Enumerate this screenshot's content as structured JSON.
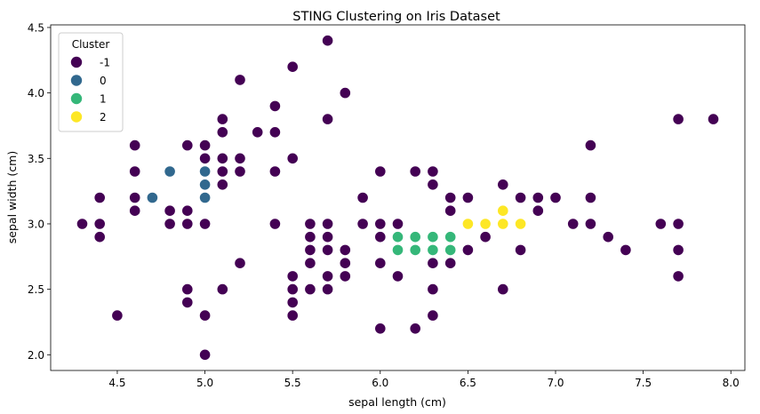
{
  "chart_data": {
    "type": "scatter",
    "title": "STING Clustering on Iris Dataset",
    "xlabel": "sepal length (cm)",
    "ylabel": "sepal width (cm)",
    "xlim": [
      4.12,
      8.08
    ],
    "ylim": [
      1.88,
      4.52
    ],
    "xticks": [
      4.5,
      5.0,
      5.5,
      6.0,
      6.5,
      7.0,
      7.5,
      8.0
    ],
    "yticks": [
      2.0,
      2.5,
      3.0,
      3.5,
      4.0,
      4.5
    ],
    "grid": false,
    "legend": {
      "title": "Cluster",
      "placement": "top-left",
      "entries": [
        "-1",
        "0",
        "1",
        "2"
      ]
    },
    "colors": {
      "-1": "#440154",
      "0": "#31688e",
      "1": "#35b779",
      "2": "#fde725"
    },
    "series": [
      {
        "name": "-1",
        "points": [
          [
            4.3,
            3.0
          ],
          [
            4.4,
            3.2
          ],
          [
            4.4,
            3.0
          ],
          [
            4.4,
            2.9
          ],
          [
            4.5,
            2.3
          ],
          [
            4.6,
            3.6
          ],
          [
            4.6,
            3.4
          ],
          [
            4.6,
            3.2
          ],
          [
            4.6,
            3.1
          ],
          [
            4.8,
            3.1
          ],
          [
            4.8,
            3.0
          ],
          [
            4.9,
            3.6
          ],
          [
            4.9,
            3.1
          ],
          [
            4.9,
            3.0
          ],
          [
            4.9,
            2.5
          ],
          [
            4.9,
            2.4
          ],
          [
            5.0,
            3.6
          ],
          [
            5.0,
            3.5
          ],
          [
            5.0,
            3.0
          ],
          [
            5.0,
            2.3
          ],
          [
            5.0,
            2.0
          ],
          [
            5.1,
            3.8
          ],
          [
            5.1,
            3.7
          ],
          [
            5.1,
            3.5
          ],
          [
            5.1,
            3.4
          ],
          [
            5.1,
            3.3
          ],
          [
            5.1,
            2.5
          ],
          [
            5.2,
            4.1
          ],
          [
            5.2,
            3.5
          ],
          [
            5.2,
            3.4
          ],
          [
            5.2,
            2.7
          ],
          [
            5.3,
            3.7
          ],
          [
            5.4,
            3.9
          ],
          [
            5.4,
            3.7
          ],
          [
            5.4,
            3.4
          ],
          [
            5.4,
            3.0
          ],
          [
            5.5,
            4.2
          ],
          [
            5.5,
            3.5
          ],
          [
            5.5,
            2.6
          ],
          [
            5.5,
            2.5
          ],
          [
            5.5,
            2.4
          ],
          [
            5.5,
            2.3
          ],
          [
            5.6,
            3.0
          ],
          [
            5.6,
            2.9
          ],
          [
            5.6,
            2.8
          ],
          [
            5.6,
            2.7
          ],
          [
            5.6,
            2.5
          ],
          [
            5.7,
            4.4
          ],
          [
            5.7,
            3.8
          ],
          [
            5.7,
            3.0
          ],
          [
            5.7,
            2.9
          ],
          [
            5.7,
            2.8
          ],
          [
            5.7,
            2.6
          ],
          [
            5.7,
            2.5
          ],
          [
            5.8,
            4.0
          ],
          [
            5.8,
            2.8
          ],
          [
            5.8,
            2.7
          ],
          [
            5.8,
            2.6
          ],
          [
            5.9,
            3.2
          ],
          [
            5.9,
            3.0
          ],
          [
            6.0,
            3.4
          ],
          [
            6.0,
            3.0
          ],
          [
            6.0,
            2.9
          ],
          [
            6.0,
            2.7
          ],
          [
            6.0,
            2.2
          ],
          [
            6.1,
            3.0
          ],
          [
            6.1,
            2.6
          ],
          [
            6.2,
            3.4
          ],
          [
            6.2,
            2.2
          ],
          [
            6.3,
            3.4
          ],
          [
            6.3,
            3.3
          ],
          [
            6.3,
            2.7
          ],
          [
            6.3,
            2.5
          ],
          [
            6.3,
            2.3
          ],
          [
            6.4,
            3.2
          ],
          [
            6.4,
            3.1
          ],
          [
            6.4,
            2.7
          ],
          [
            6.5,
            3.2
          ],
          [
            6.5,
            2.8
          ],
          [
            6.6,
            2.9
          ],
          [
            6.7,
            3.3
          ],
          [
            6.7,
            2.5
          ],
          [
            6.8,
            3.2
          ],
          [
            6.8,
            2.8
          ],
          [
            6.9,
            3.2
          ],
          [
            6.9,
            3.1
          ],
          [
            7.0,
            3.2
          ],
          [
            7.1,
            3.0
          ],
          [
            7.2,
            3.6
          ],
          [
            7.2,
            3.2
          ],
          [
            7.2,
            3.0
          ],
          [
            7.3,
            2.9
          ],
          [
            7.4,
            2.8
          ],
          [
            7.6,
            3.0
          ],
          [
            7.7,
            3.8
          ],
          [
            7.7,
            3.0
          ],
          [
            7.7,
            2.8
          ],
          [
            7.7,
            2.6
          ],
          [
            7.9,
            3.8
          ]
        ]
      },
      {
        "name": "0",
        "points": [
          [
            4.7,
            3.2
          ],
          [
            4.8,
            3.4
          ],
          [
            5.0,
            3.4
          ],
          [
            5.0,
            3.3
          ],
          [
            5.0,
            3.2
          ]
        ]
      },
      {
        "name": "1",
        "points": [
          [
            6.1,
            2.9
          ],
          [
            6.1,
            2.8
          ],
          [
            6.2,
            2.9
          ],
          [
            6.2,
            2.8
          ],
          [
            6.3,
            2.9
          ],
          [
            6.3,
            2.8
          ],
          [
            6.4,
            2.9
          ],
          [
            6.4,
            2.8
          ]
        ]
      },
      {
        "name": "2",
        "points": [
          [
            6.5,
            3.0
          ],
          [
            6.6,
            3.0
          ],
          [
            6.7,
            3.1
          ],
          [
            6.7,
            3.0
          ],
          [
            6.8,
            3.0
          ]
        ]
      }
    ]
  }
}
